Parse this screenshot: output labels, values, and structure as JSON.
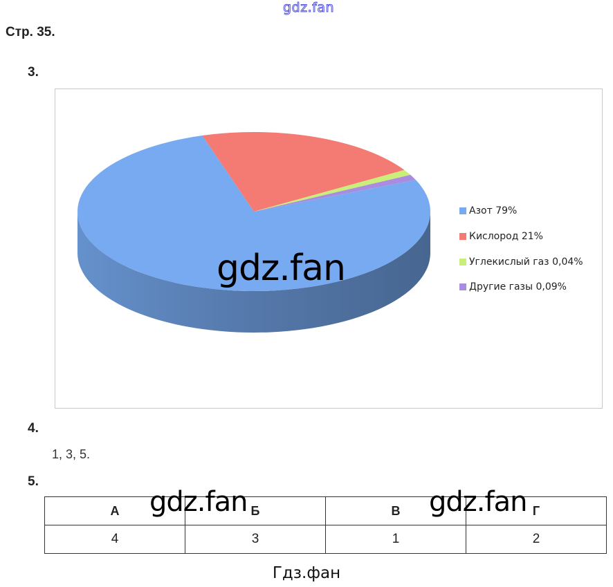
{
  "watermark_top": "gdz.fan",
  "page_label": "Стр. 35.",
  "q3": {
    "number": "3."
  },
  "chart_data": {
    "type": "pie",
    "style": "3d",
    "title": "",
    "categories": [
      "Азот 79%",
      "Кислород 21%",
      "Углекислый газ 0,04%",
      "Другие газы 0,09%"
    ],
    "values": [
      79,
      21,
      0.04,
      0.09
    ],
    "colors": [
      "#77aaf0",
      "#f47a74",
      "#c9ee7a",
      "#a98ce0"
    ],
    "legend": "right"
  },
  "watermark_chart": "gdz.fan",
  "q4": {
    "number": "4.",
    "answer": "1, 3, 5."
  },
  "q5": {
    "number": "5.",
    "headers": [
      "А",
      "Б",
      "В",
      "Г"
    ],
    "values": [
      "4",
      "3",
      "1",
      "2"
    ],
    "watermark": "gdz.fan"
  },
  "footer": "Гдз.фан"
}
